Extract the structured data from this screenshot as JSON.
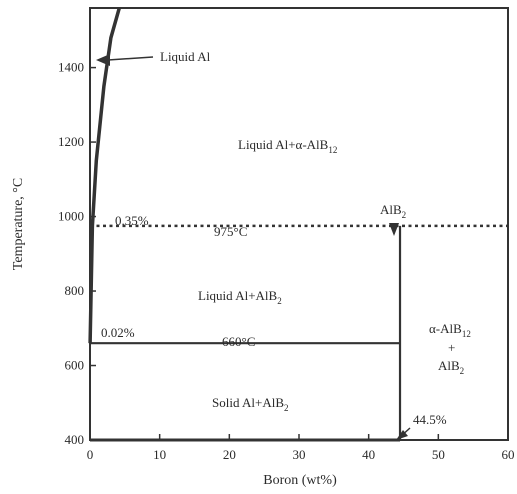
{
  "chart_data": {
    "type": "line",
    "title": "",
    "xlabel": "Boron (wt%)",
    "ylabel": "Temperature, °C",
    "xlim": [
      0,
      60
    ],
    "ylim": [
      400,
      1560
    ],
    "x_ticks": [
      0,
      10,
      20,
      30,
      40,
      50,
      60
    ],
    "y_ticks": [
      400,
      600,
      800,
      1000,
      1200,
      1400
    ],
    "x_tick_labels": [
      "0",
      "10",
      "20",
      "30",
      "40",
      "50",
      "60"
    ],
    "y_tick_labels": [
      "400",
      "600",
      "800",
      "1000",
      "1200",
      "1400"
    ],
    "grid": false,
    "series": [
      {
        "x": [
          0.02,
          0.35,
          0.9,
          2.0,
          3.0,
          4.2
        ],
        "y": [
          660,
          975,
          1150,
          1350,
          1480,
          1560
        ]
      },
      {
        "x": [
          0,
          44.5
        ],
        "y": [
          660,
          660
        ]
      },
      {
        "x": [
          0,
          60
        ],
        "y": [
          975,
          975
        ],
        "style": "dotted"
      },
      {
        "x": [
          44.5,
          44.5
        ],
        "y": [
          400,
          975
        ]
      },
      {
        "x": [
          0,
          44.5
        ],
        "y": [
          400,
          400
        ]
      }
    ],
    "annotations": {
      "liquid_al": "Liquid Al",
      "liquid_al_alpha_main": "Liquid Al+α-AlB",
      "liquid_al_alpha_sub": "12",
      "alb2_main": "AlB",
      "alb2_sub": "2",
      "pct_035": "0.35%",
      "temp_975": "975°C",
      "liquid_al_alb2_main": "Liquid Al+AlB",
      "liquid_al_alb2_sub": "2",
      "pct_002": "0.02%",
      "temp_660": "660°C",
      "alpha_alb12_main": "α-AlB",
      "alpha_alb12_sub": "12",
      "plus": "+",
      "alpha_alb2_main": "AlB",
      "alpha_alb2_sub": "2",
      "solid_al_alb2_main": "Solid Al+AlB",
      "solid_al_alb2_sub": "2",
      "pct_445": "44.5%"
    }
  }
}
